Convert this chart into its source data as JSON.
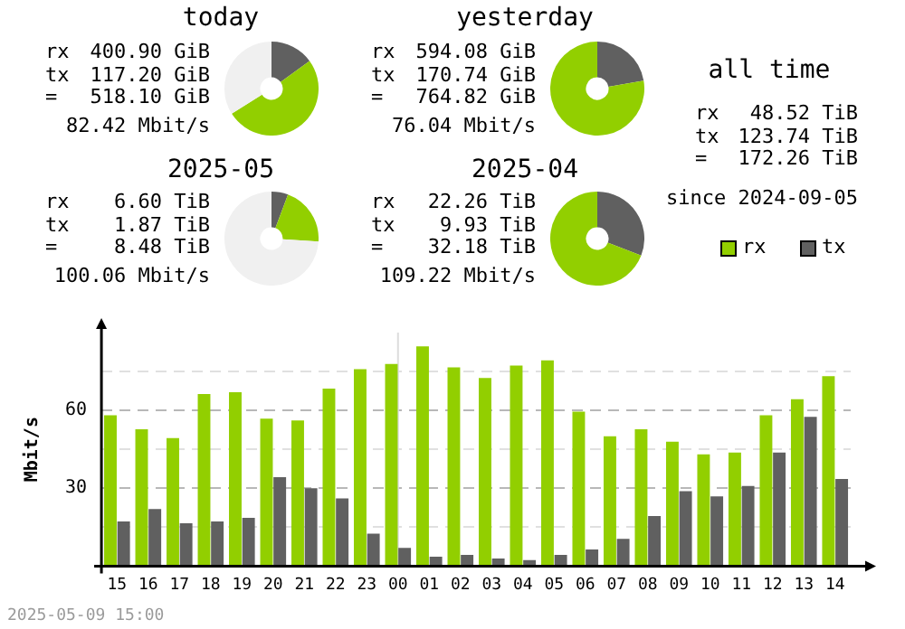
{
  "chart_data": [
    {
      "type": "donut",
      "title": "today",
      "categories": [
        null,
        null,
        null
      ],
      "values": [
        15,
        51,
        34
      ],
      "colors": [
        "#606060",
        "#92cf00",
        "#f0f0f0"
      ],
      "legend": false,
      "annotations": [
        "rx",
        "400.90 GiB",
        "tx",
        "117.20 GiB",
        "=",
        "518.10 GiB",
        "82.42 Mbit/s"
      ]
    },
    {
      "type": "donut",
      "title": "yesterday",
      "categories": [
        null,
        null
      ],
      "values": [
        22.3,
        77.7
      ],
      "colors": [
        "#606060",
        "#92cf00"
      ],
      "legend": false,
      "annotations": [
        "rx",
        "594.08 GiB",
        "tx",
        "170.74 GiB",
        "=",
        "764.82 GiB",
        "76.04 Mbit/s"
      ]
    },
    {
      "type": "other",
      "title": "all time",
      "annotations": [
        "rx",
        "48.52 TiB",
        "tx",
        "123.74 TiB",
        "=",
        "172.26 TiB",
        "since 2024-09-05"
      ]
    },
    {
      "type": "donut",
      "title": "2025-05",
      "categories": [
        null,
        null,
        null
      ],
      "values": [
        5.7,
        20.3,
        74
      ],
      "colors": [
        "#606060",
        "#92cf00",
        "#f0f0f0"
      ],
      "legend": false,
      "annotations": [
        "rx",
        "6.60 TiB",
        "tx",
        "1.87 TiB",
        "=",
        "8.48 TiB",
        "100.06 Mbit/s"
      ]
    },
    {
      "type": "donut",
      "title": "2025-04",
      "categories": [
        null,
        null
      ],
      "values": [
        30.9,
        69.1
      ],
      "colors": [
        "#606060",
        "#92cf00"
      ],
      "legend": false,
      "annotations": [
        "rx",
        "22.26 TiB",
        "tx",
        "9.93 TiB",
        "=",
        "32.18 TiB",
        "109.22 Mbit/s"
      ]
    },
    {
      "type": "bar",
      "ylabel": "Mbit/s",
      "categories": [
        "15",
        "16",
        "17",
        "18",
        "19",
        "20",
        "21",
        "22",
        "23",
        "00",
        "01",
        "02",
        "03",
        "04",
        "05",
        "06",
        "07",
        "08",
        "09",
        "10",
        "11",
        "12",
        "13",
        "14"
      ],
      "series": [
        {
          "name": "rx",
          "color": "#92cf00",
          "values": [
            58.1,
            52.7,
            49.3,
            66.3,
            67.0,
            56.8,
            56.1,
            68.4,
            75.9,
            77.9,
            84.7,
            76.6,
            72.5,
            77.3,
            79.3,
            59.5,
            50.0,
            52.7,
            47.9,
            43.1,
            43.8,
            58.1,
            64.3,
            73.2
          ]
        },
        {
          "name": "tx",
          "color": "#606060",
          "values": [
            17.2,
            22.0,
            16.5,
            17.2,
            18.6,
            34.3,
            30.0,
            26.1,
            12.5,
            7.0,
            3.6,
            4.3,
            2.9,
            2.3,
            4.3,
            6.4,
            10.5,
            19.3,
            28.9,
            26.9,
            30.9,
            43.8,
            57.5,
            33.6
          ]
        }
      ],
      "ylim": [
        0,
        90
      ],
      "yticks": [
        {
          "value": 0,
          "label": null
        },
        {
          "value": 15,
          "label": null
        },
        30,
        {
          "value": 45,
          "label": null
        },
        60,
        {
          "value": 75,
          "label": null
        }
      ],
      "grid": "y",
      "legend": "top right",
      "ref_lines": [
        {
          "axis": "x",
          "value": "00",
          "color": "#dddddd"
        }
      ],
      "annotations": [
        "2025-05-09 15:00"
      ]
    }
  ]
}
